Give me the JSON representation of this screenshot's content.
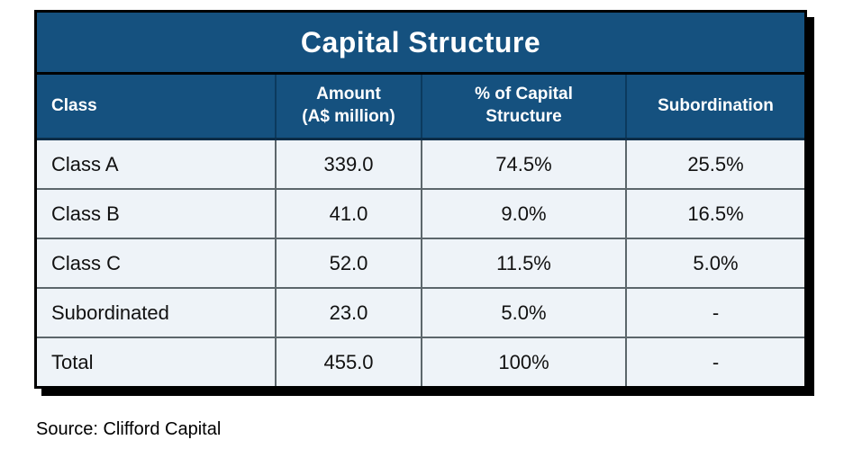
{
  "table": {
    "title": "Capital Structure",
    "columns": [
      {
        "label": "Class"
      },
      {
        "label": "Amount\n(A$ million)"
      },
      {
        "label": "% of Capital\nStructure"
      },
      {
        "label": "Subordination"
      }
    ],
    "rows": [
      {
        "class": "Class A",
        "amount": "339.0",
        "pct": "74.5%",
        "sub": "25.5%"
      },
      {
        "class": "Class B",
        "amount": "41.0",
        "pct": "9.0%",
        "sub": "16.5%"
      },
      {
        "class": "Class C",
        "amount": "52.0",
        "pct": "11.5%",
        "sub": "5.0%"
      },
      {
        "class": "Subordinated",
        "amount": "23.0",
        "pct": "5.0%",
        "sub": "-"
      },
      {
        "class": "Total",
        "amount": "455.0",
        "pct": "100%",
        "sub": "-"
      }
    ]
  },
  "source": "Source: Clifford Capital",
  "colors": {
    "header_blue": "#15517f",
    "row_light_blue": "#eef3f8",
    "grid_gray": "#5c666b",
    "border_black": "#000000",
    "header_text": "#ffffff",
    "body_text": "#111111"
  },
  "chart_data": {
    "type": "table",
    "title": "Capital Structure",
    "categories": [
      "Class A",
      "Class B",
      "Class C",
      "Subordinated",
      "Total"
    ],
    "series": [
      {
        "name": "Amount (A$ million)",
        "values": [
          339.0,
          41.0,
          52.0,
          23.0,
          455.0
        ]
      },
      {
        "name": "% of Capital Structure",
        "values": [
          74.5,
          9.0,
          11.5,
          5.0,
          100.0
        ]
      },
      {
        "name": "Subordination (%)",
        "values": [
          25.5,
          16.5,
          5.0,
          null,
          null
        ]
      }
    ]
  }
}
